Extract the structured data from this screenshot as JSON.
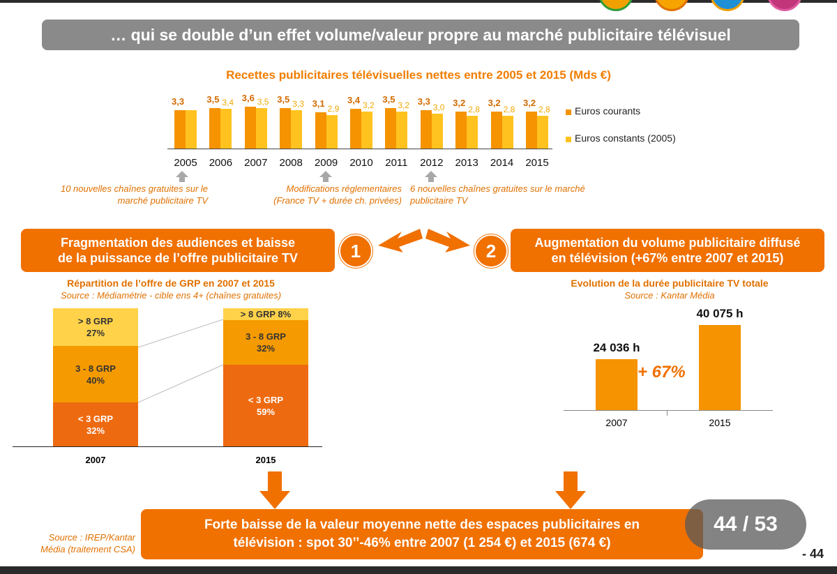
{
  "title": "… qui se double d’un effet volume/valeur propre au marché publicitaire télévisuel",
  "colors": {
    "orange": "#f07000",
    "dark_orange": "#e85f00",
    "light_orange": "#f59a00",
    "yellow": "#ffd24a",
    "bar_current": "#f59300",
    "bar_constant": "#ffc21f",
    "banner_gray": "#8a8a8a"
  },
  "chart_data": [
    {
      "type": "bar",
      "title": "Recettes publicitaires télévisuelles nettes entre 2005 et 2015 (Mds €)",
      "categories": [
        "2005",
        "2006",
        "2007",
        "2008",
        "2009",
        "2010",
        "2011",
        "2012",
        "2013",
        "2014",
        "2015"
      ],
      "series": [
        {
          "name": "Euros courants",
          "values": [
            3.3,
            3.5,
            3.6,
            3.5,
            3.1,
            3.4,
            3.5,
            3.3,
            3.2,
            3.2,
            3.2
          ],
          "labels": [
            "3,3",
            "3,5",
            "3,6",
            "3,5",
            "3,1",
            "3,4",
            "3,5",
            "3,3",
            "3,2",
            "3,2",
            "3,2"
          ]
        },
        {
          "name": "Euros constants (2005)",
          "values": [
            3.3,
            3.4,
            3.5,
            3.3,
            2.9,
            3.2,
            3.2,
            3.0,
            2.8,
            2.8,
            2.8
          ],
          "labels": [
            "",
            "3,4",
            "3,5",
            "3,3",
            "2,9",
            "3,2",
            "3,2",
            "3,0",
            "2,8",
            "2,8",
            "2,8"
          ]
        }
      ],
      "legend": [
        "Euros courants",
        "Euros constants (2005)"
      ]
    },
    {
      "type": "bar",
      "title": "Répartition de l’offre de GRP en 2007 et 2015",
      "source": "Source : Médiamétrie - cible ens 4+ (chaînes gratuites)",
      "categories": [
        "2007",
        "2015"
      ],
      "series": [
        {
          "name": "< 3 GRP",
          "values": [
            32,
            59
          ]
        },
        {
          "name": "3 - 8 GRP",
          "values": [
            40,
            32
          ]
        },
        {
          "name": "> 8 GRP",
          "values": [
            27,
            8
          ]
        }
      ]
    },
    {
      "type": "bar",
      "title": "Evolution de la durée publicitaire TV totale",
      "source": "Source : Kantar Média",
      "categories": [
        "2007",
        "2015"
      ],
      "values": [
        24036,
        40075
      ],
      "labels": [
        "24 036 h",
        "40 075 h"
      ],
      "annotation": "+ 67%"
    }
  ],
  "annotations": {
    "note1": [
      "10 nouvelles chaînes gratuites sur le",
      "marché publicitaire TV"
    ],
    "note2": [
      "Modifications réglementaires",
      "(France TV + durée ch. privées)"
    ],
    "note3": [
      "6 nouvelles chaînes gratuites sur le marché",
      "publicitaire TV"
    ]
  },
  "box1": {
    "line1": "Fragmentation des audiences et baisse",
    "line2": "de la puissance de l’offre publicitaire TV",
    "number": "1"
  },
  "box2": {
    "line1": "Augmentation du volume publicitaire diffusé",
    "line2": "en télévision (+67% entre 2007 et 2015)",
    "number": "2"
  },
  "stack_labels": {
    "s2007": [
      {
        "name": "> 8 GRP",
        "pct": "27%"
      },
      {
        "name": "3 - 8 GRP",
        "pct": "40%"
      },
      {
        "name": "< 3 GRP",
        "pct": "32%"
      }
    ],
    "s2015": [
      {
        "name": "> 8 GRP 8%"
      },
      {
        "name": "3 - 8 GRP",
        "pct": "32%"
      },
      {
        "name": "< 3 GRP",
        "pct": "59%"
      }
    ]
  },
  "conclusion": {
    "line1": "Forte baisse de la valeur moyenne nette des espaces publicitaires en",
    "line2": "télévision : spot 30’’-46% entre 2007 (1 254 €) et 2015 (674 €)"
  },
  "footer_source": [
    "Source : IREP/Kantar",
    "Média (traitement CSA)"
  ],
  "pager": "44 / 53",
  "page_number": "- 44"
}
